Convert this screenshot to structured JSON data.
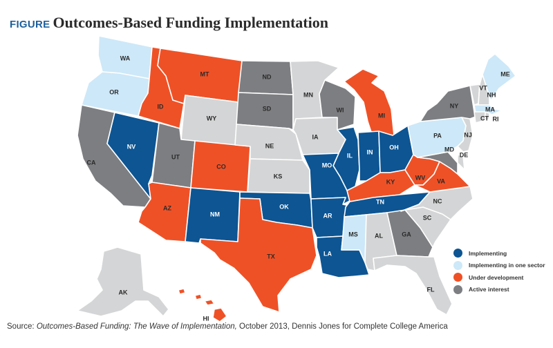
{
  "title": {
    "tag": "FIGURE",
    "text": "Outcomes-Based Funding Implementation"
  },
  "colors": {
    "implementing": "#0d5593",
    "one_sector": "#cde8f8",
    "under_development": "#ef5126",
    "active_interest": "#7d7e81",
    "none": "#d4d5d6"
  },
  "legend": [
    {
      "key": "implementing",
      "label": "Implementing",
      "color": "#0d5593"
    },
    {
      "key": "one_sector",
      "label": "Implementing in one sector",
      "color": "#cde8f8"
    },
    {
      "key": "under_development",
      "label": "Under development",
      "color": "#ef5126"
    },
    {
      "key": "active_interest",
      "label": "Active interest",
      "color": "#7d7e81"
    }
  ],
  "source": {
    "prefix": "Source: ",
    "italic": "Outcomes-Based Funding: The Wave of Implementation,",
    "suffix": " October 2013, Dennis Jones for Complete College America"
  },
  "states": {
    "WA": "one_sector",
    "OR": "one_sector",
    "CA": "active_interest",
    "NV": "implementing",
    "ID": "under_development",
    "MT": "under_development",
    "WY": "none",
    "UT": "active_interest",
    "AZ": "under_development",
    "CO": "under_development",
    "NM": "implementing",
    "ND": "active_interest",
    "SD": "active_interest",
    "NE": "none",
    "KS": "none",
    "OK": "implementing",
    "TX": "under_development",
    "MN": "none",
    "IA": "none",
    "MO": "implementing",
    "AR": "implementing",
    "LA": "implementing",
    "WI": "active_interest",
    "IL": "implementing",
    "MI": "under_development",
    "IN": "implementing",
    "OH": "implementing",
    "KY": "under_development",
    "TN": "implementing",
    "MS": "one_sector",
    "AL": "none",
    "GA": "active_interest",
    "FL": "none",
    "SC": "none",
    "NC": "none",
    "VA": "under_development",
    "WV": "under_development",
    "PA": "one_sector",
    "NY": "active_interest",
    "VT": "none",
    "NH": "none",
    "ME": "one_sector",
    "MA": "one_sector",
    "CT": "none",
    "RI": "none",
    "NJ": "none",
    "DE": "none",
    "MD": "active_interest",
    "AK": "none",
    "HI": "under_development"
  },
  "labels": {
    "WA": "WA",
    "OR": "OR",
    "CA": "CA",
    "NV": "NV",
    "ID": "ID",
    "MT": "MT",
    "WY": "WY",
    "UT": "UT",
    "AZ": "AZ",
    "CO": "CO",
    "NM": "NM",
    "ND": "ND",
    "SD": "SD",
    "NE": "NE",
    "KS": "KS",
    "OK": "OK",
    "TX": "TX",
    "MN": "MN",
    "IA": "IA",
    "MO": "MO",
    "AR": "AR",
    "LA": "LA",
    "WI": "WI",
    "IL": "IL",
    "MI": "MI",
    "IN": "IN",
    "OH": "OH",
    "KY": "KY",
    "TN": "TN",
    "MS": "MS",
    "AL": "AL",
    "GA": "GA",
    "FL": "FL",
    "SC": "SC",
    "NC": "NC",
    "VA": "VA",
    "WV": "WV",
    "PA": "PA",
    "NY": "NY",
    "VT": "VT",
    "NH": "NH",
    "ME": "ME",
    "MA": "MA",
    "CT": "CT",
    "RI": "RI",
    "NJ": "NJ",
    "DE": "DE",
    "MD": "MD",
    "AK": "AK",
    "HI": "HI"
  }
}
